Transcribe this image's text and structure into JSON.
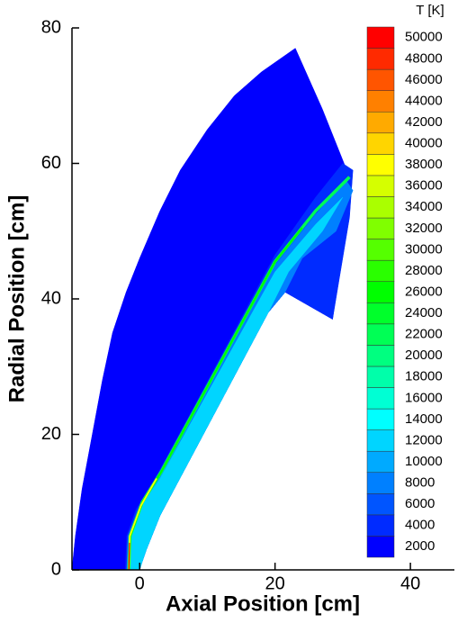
{
  "chart_data": {
    "type": "contour",
    "xlabel": "Axial Position [cm]",
    "ylabel": "Radial Position [cm]",
    "xlim": [
      -10,
      46.5
    ],
    "xticks": [
      0,
      20,
      40
    ],
    "ylim": [
      0,
      80
    ],
    "yticks": [
      0,
      20,
      40,
      60,
      80
    ],
    "colorbar": {
      "label": "T [K]",
      "levels": [
        2000,
        4000,
        6000,
        8000,
        10000,
        12000,
        14000,
        16000,
        18000,
        20000,
        22000,
        24000,
        26000,
        28000,
        30000,
        32000,
        34000,
        36000,
        38000,
        40000,
        42000,
        44000,
        46000,
        48000,
        50000
      ],
      "colormap": [
        "#0000ff",
        "#00ffff",
        "#00ff00",
        "#ffff00",
        "#ff0000"
      ]
    }
  }
}
